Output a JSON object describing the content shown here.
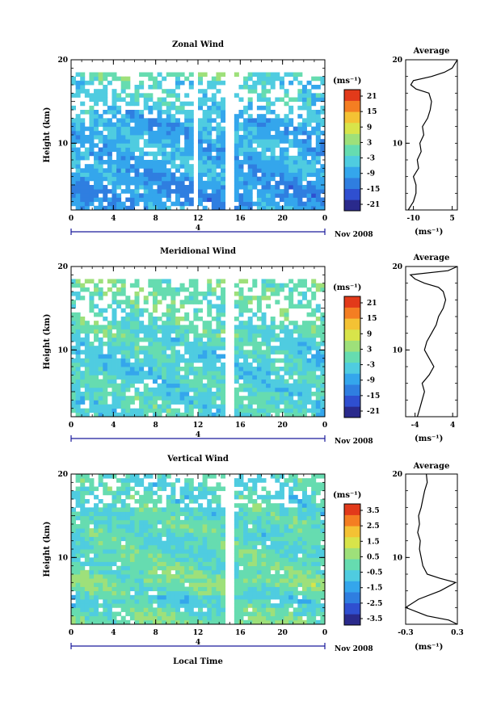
{
  "figure": {
    "date_label": "Nov 2008",
    "day_label": "4",
    "xlabel": "Local Time",
    "ylabel": "Height (km)",
    "unit_label": "(ms⁻¹)"
  },
  "chart_data": [
    {
      "type": "heatmap",
      "title": "Zonal Wind",
      "xlabel": "",
      "ylabel": "Height (km)",
      "x_ticks": [
        "0",
        "4",
        "8",
        "12",
        "16",
        "20",
        "0"
      ],
      "xlim": [
        0,
        24
      ],
      "y_ticks": [
        "20",
        "10"
      ],
      "ylim": [
        2,
        20
      ],
      "colorbar": {
        "unit": "(ms⁻¹)",
        "ticks": [
          "21",
          "15",
          "9",
          "3",
          "-3",
          "-9",
          "-15",
          "-21"
        ],
        "range": [
          -24,
          24
        ]
      },
      "field": {
        "mean_profile": [
          [
            2,
            -9
          ],
          [
            4,
            -11
          ],
          [
            6,
            -9
          ],
          [
            8,
            -8
          ],
          [
            10,
            -7
          ],
          [
            12,
            -8
          ],
          [
            14,
            -6
          ],
          [
            16,
            -2
          ],
          [
            17,
            -6
          ],
          [
            18,
            0
          ]
        ],
        "gaps_hours": [
          11.8,
          15
        ]
      },
      "average": {
        "title": "Average",
        "x_ticks": [
          "-10",
          "5"
        ],
        "xlim": [
          -13,
          7
        ],
        "y_ticks": [
          "20",
          "10"
        ],
        "unit": "(ms⁻¹)",
        "profile": [
          [
            2,
            -12
          ],
          [
            3,
            -10
          ],
          [
            4,
            -9
          ],
          [
            5,
            -9
          ],
          [
            6,
            -10
          ],
          [
            7,
            -8
          ],
          [
            8,
            -8.5
          ],
          [
            9,
            -7
          ],
          [
            10,
            -7.5
          ],
          [
            11,
            -6
          ],
          [
            12,
            -6.5
          ],
          [
            13,
            -4.5
          ],
          [
            14,
            -3.5
          ],
          [
            15,
            -3
          ],
          [
            16,
            -4
          ],
          [
            16.5,
            -9
          ],
          [
            17,
            -11
          ],
          [
            17.5,
            -10
          ],
          [
            18,
            -3
          ],
          [
            18.5,
            2
          ],
          [
            19,
            5
          ],
          [
            19.5,
            6
          ],
          [
            20,
            7
          ]
        ]
      }
    },
    {
      "type": "heatmap",
      "title": "Meridional Wind",
      "xlabel": "",
      "ylabel": "Height (km)",
      "x_ticks": [
        "0",
        "4",
        "8",
        "12",
        "16",
        "20",
        "0"
      ],
      "xlim": [
        0,
        24
      ],
      "y_ticks": [
        "20",
        "10"
      ],
      "ylim": [
        2,
        20
      ],
      "colorbar": {
        "unit": "(ms⁻¹)",
        "ticks": [
          "21",
          "15",
          "9",
          "3",
          "-3",
          "-9",
          "-15",
          "-21"
        ],
        "range": [
          -24,
          24
        ]
      },
      "field": {
        "mean_profile": [
          [
            2,
            -3
          ],
          [
            4,
            -2
          ],
          [
            6,
            -3
          ],
          [
            8,
            -4
          ],
          [
            10,
            -3
          ],
          [
            12,
            -2
          ],
          [
            14,
            -1
          ],
          [
            16,
            0
          ],
          [
            18,
            1
          ]
        ],
        "gaps_hours": [
          15
        ]
      },
      "average": {
        "title": "Average",
        "x_ticks": [
          "-4",
          "4"
        ],
        "xlim": [
          -6,
          5
        ],
        "y_ticks": [
          "20",
          "10"
        ],
        "unit": "(ms⁻¹)",
        "profile": [
          [
            2,
            -3.5
          ],
          [
            3,
            -3
          ],
          [
            4,
            -2.5
          ],
          [
            5,
            -2
          ],
          [
            6,
            -2.5
          ],
          [
            7,
            -1
          ],
          [
            8,
            0
          ],
          [
            9,
            -1
          ],
          [
            10,
            -2
          ],
          [
            11,
            -1.5
          ],
          [
            12,
            -0.5
          ],
          [
            13,
            0.5
          ],
          [
            14,
            1
          ],
          [
            15,
            2
          ],
          [
            16,
            2.5
          ],
          [
            17,
            2
          ],
          [
            17.5,
            1
          ],
          [
            18,
            -2
          ],
          [
            18.5,
            -4
          ],
          [
            19,
            -5
          ],
          [
            19.5,
            3
          ],
          [
            20,
            5
          ]
        ]
      }
    },
    {
      "type": "heatmap",
      "title": "Vertical Wind",
      "xlabel": "Local Time",
      "ylabel": "Height (km)",
      "x_ticks": [
        "0",
        "4",
        "8",
        "12",
        "16",
        "20",
        "0"
      ],
      "xlim": [
        0,
        24
      ],
      "y_ticks": [
        "20",
        "10"
      ],
      "ylim": [
        2,
        20
      ],
      "colorbar": {
        "unit": "(ms⁻¹)",
        "ticks": [
          "3.5",
          "2.5",
          "1.5",
          "0.5",
          "-0.5",
          "-1.5",
          "-2.5",
          "-3.5"
        ],
        "range": [
          -4,
          4
        ]
      },
      "field": {
        "mean_profile": [
          [
            2,
            0.3
          ],
          [
            4,
            -0.2
          ],
          [
            5,
            -0.6
          ],
          [
            6,
            -0.1
          ],
          [
            7,
            0.4
          ],
          [
            8,
            0.1
          ],
          [
            10,
            -0.2
          ],
          [
            14,
            -0.3
          ],
          [
            18,
            -0.4
          ],
          [
            20,
            -0.3
          ]
        ],
        "gaps_hours": [
          15
        ]
      },
      "average": {
        "title": "Average",
        "x_ticks": [
          "-0.3",
          "0.3"
        ],
        "xlim": [
          -0.3,
          0.3
        ],
        "y_ticks": [
          "20",
          "10"
        ],
        "unit": "(ms⁻¹)",
        "profile": [
          [
            2,
            0.3
          ],
          [
            2.5,
            0.2
          ],
          [
            3,
            -0.05
          ],
          [
            4,
            -0.3
          ],
          [
            5,
            -0.15
          ],
          [
            6,
            0.1
          ],
          [
            7,
            0.28
          ],
          [
            7.5,
            0.1
          ],
          [
            8,
            -0.05
          ],
          [
            9,
            -0.1
          ],
          [
            10,
            -0.12
          ],
          [
            11,
            -0.14
          ],
          [
            12,
            -0.13
          ],
          [
            13,
            -0.16
          ],
          [
            14,
            -0.14
          ],
          [
            15,
            -0.15
          ],
          [
            16,
            -0.12
          ],
          [
            17,
            -0.1
          ],
          [
            18,
            -0.08
          ],
          [
            19,
            -0.05
          ],
          [
            20,
            -0.06
          ]
        ]
      }
    }
  ]
}
